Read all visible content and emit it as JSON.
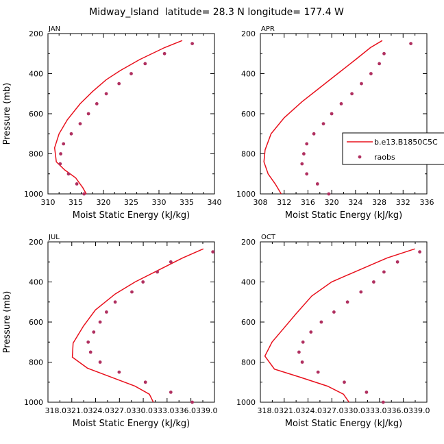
{
  "figure": {
    "title": "Midway_Island  latitude= 28.3 N longitude= 177.4 W"
  },
  "legend": {
    "model_label": "b.e13.B1850C5C",
    "obs_label": "raobs",
    "model_color": "#e8101c",
    "obs_color": "#b03060"
  },
  "chart_data": [
    {
      "type": "line",
      "panel": "JAN",
      "title": "JAN",
      "xlabel": "Moist Static Energy (kJ/kg)",
      "ylabel": "Pressure (mb)",
      "xlim": [
        310,
        340
      ],
      "ylim": [
        1000,
        200
      ],
      "xticks": [
        310,
        312,
        314,
        316,
        318,
        320,
        322,
        324,
        326,
        328,
        330,
        332,
        334,
        336,
        338,
        340
      ],
      "xtick_labels": [
        "310",
        "315",
        "320",
        "325",
        "330",
        "335",
        "340"
      ],
      "xtick_label_values": [
        310,
        315,
        320,
        325,
        330,
        335,
        340
      ],
      "yticks": [
        200,
        300,
        400,
        500,
        600,
        700,
        800,
        900,
        1000
      ],
      "ytick_labels": [
        "200",
        "400",
        "600",
        "800",
        "1000"
      ],
      "ytick_label_values": [
        200,
        400,
        600,
        800,
        1000
      ],
      "series": [
        {
          "name": "b.e13.B1850C5C",
          "style": "line",
          "points": [
            [
              334.2,
              235
            ],
            [
              331.0,
              270
            ],
            [
              326.5,
              330
            ],
            [
              323.0,
              385
            ],
            [
              320.5,
              430
            ],
            [
              318.0,
              490
            ],
            [
              315.8,
              550
            ],
            [
              313.5,
              630
            ],
            [
              312.0,
              700
            ],
            [
              311.2,
              770
            ],
            [
              311.5,
              840
            ],
            [
              313.0,
              880
            ],
            [
              315.0,
              920
            ],
            [
              316.3,
              970
            ],
            [
              316.9,
              1000
            ]
          ]
        },
        {
          "name": "raobs",
          "style": "markers",
          "points": [
            [
              336.0,
              250
            ],
            [
              331.0,
              300
            ],
            [
              327.5,
              350
            ],
            [
              325.0,
              400
            ],
            [
              322.8,
              450
            ],
            [
              320.5,
              500
            ],
            [
              318.8,
              550
            ],
            [
              317.3,
              600
            ],
            [
              315.8,
              650
            ],
            [
              314.2,
              700
            ],
            [
              312.8,
              750
            ],
            [
              312.3,
              800
            ],
            [
              312.2,
              850
            ],
            [
              313.7,
              900
            ],
            [
              315.2,
              950
            ],
            [
              316.5,
              1000
            ]
          ]
        }
      ]
    },
    {
      "type": "line",
      "panel": "APR",
      "title": "APR",
      "xlabel": "Moist Static Energy (kJ/kg)",
      "ylabel": "",
      "xlim": [
        308,
        336
      ],
      "ylim": [
        1000,
        200
      ],
      "xticks": [
        308,
        310,
        312,
        314,
        316,
        318,
        320,
        322,
        324,
        326,
        328,
        330,
        332,
        334,
        336
      ],
      "xtick_labels": [
        "308",
        "312",
        "316",
        "320",
        "324",
        "328",
        "332",
        "336"
      ],
      "xtick_label_values": [
        308,
        312,
        316,
        320,
        324,
        328,
        332,
        336
      ],
      "yticks": [
        200,
        300,
        400,
        500,
        600,
        700,
        800,
        900,
        1000
      ],
      "ytick_labels": [
        "200",
        "400",
        "600",
        "800",
        "1000"
      ],
      "ytick_label_values": [
        200,
        400,
        600,
        800,
        1000
      ],
      "series": [
        {
          "name": "b.e13.B1850C5C",
          "style": "line",
          "points": [
            [
              328.5,
              235
            ],
            [
              326.5,
              270
            ],
            [
              324.0,
              330
            ],
            [
              321.0,
              400
            ],
            [
              318.0,
              470
            ],
            [
              315.0,
              540
            ],
            [
              312.0,
              620
            ],
            [
              309.8,
              700
            ],
            [
              308.8,
              780
            ],
            [
              308.6,
              840
            ],
            [
              309.3,
              900
            ],
            [
              310.5,
              950
            ],
            [
              311.5,
              1000
            ]
          ]
        },
        {
          "name": "raobs",
          "style": "markers",
          "points": [
            [
              333.3,
              250
            ],
            [
              328.8,
              300
            ],
            [
              328.0,
              350
            ],
            [
              326.6,
              400
            ],
            [
              325.0,
              450
            ],
            [
              323.4,
              500
            ],
            [
              321.6,
              550
            ],
            [
              320.0,
              600
            ],
            [
              318.6,
              650
            ],
            [
              317.0,
              700
            ],
            [
              315.8,
              750
            ],
            [
              315.3,
              800
            ],
            [
              315.0,
              850
            ],
            [
              315.8,
              900
            ],
            [
              317.6,
              950
            ],
            [
              319.5,
              1000
            ]
          ]
        }
      ]
    },
    {
      "type": "line",
      "panel": "JUL",
      "title": "JUL",
      "xlabel": "Moist Static Energy (kJ/kg)",
      "ylabel": "Pressure (mb)",
      "xlim": [
        318.0321,
        339.0
      ],
      "ylim": [
        1000,
        200
      ],
      "xticks": [
        318.0321,
        319.5321,
        321.0321,
        322.5321,
        324.0321,
        325.5321,
        327.0321,
        328.5321,
        330.0321,
        331.5321,
        333.0321,
        334.5321,
        336.0321,
        337.5321,
        339.0
      ],
      "xtick_labels": [
        "318.0321.0324.0327.0330.0333.0336.0339.0"
      ],
      "xtick_label_values": [
        328.5
      ],
      "yticks": [
        200,
        300,
        400,
        500,
        600,
        700,
        800,
        900,
        1000
      ],
      "ytick_labels": [
        "200",
        "400",
        "600",
        "800",
        "1000"
      ],
      "ytick_label_values": [
        200,
        400,
        600,
        800,
        1000
      ],
      "series": [
        {
          "name": "b.e13.B1850C5C",
          "style": "line",
          "points": [
            [
              337.6,
              235
            ],
            [
              335.0,
              280
            ],
            [
              332.0,
              340
            ],
            [
              329.0,
              400
            ],
            [
              326.5,
              460
            ],
            [
              324.0,
              540
            ],
            [
              322.5,
              620
            ],
            [
              321.2,
              705
            ],
            [
              321.1,
              775
            ],
            [
              323.0,
              830
            ],
            [
              326.0,
              875
            ],
            [
              329.0,
              920
            ],
            [
              330.8,
              960
            ],
            [
              331.3,
              1000
            ]
          ]
        },
        {
          "name": "raobs",
          "style": "markers",
          "points": [
            [
              338.8,
              250
            ],
            [
              333.5,
              300
            ],
            [
              331.8,
              350
            ],
            [
              330.0,
              400
            ],
            [
              328.6,
              450
            ],
            [
              326.5,
              500
            ],
            [
              325.4,
              550
            ],
            [
              324.6,
              600
            ],
            [
              323.8,
              650
            ],
            [
              323.1,
              700
            ],
            [
              323.4,
              750
            ],
            [
              324.6,
              800
            ],
            [
              327.0,
              850
            ],
            [
              330.3,
              900
            ],
            [
              333.5,
              950
            ],
            [
              336.2,
              1000
            ]
          ]
        }
      ]
    },
    {
      "type": "line",
      "panel": "OCT",
      "title": "OCT",
      "xlabel": "Moist Static Energy (kJ/kg)",
      "ylabel": "",
      "xlim": [
        318.0321,
        339.0
      ],
      "ylim": [
        1000,
        200
      ],
      "xticks": [
        318.0321,
        319.5321,
        321.0321,
        322.5321,
        324.0321,
        325.5321,
        327.0321,
        328.5321,
        330.0321,
        331.5321,
        333.0321,
        334.5321,
        336.0321,
        337.5321,
        339.0
      ],
      "xtick_labels": [
        "318.0321.0324.0327.0330.0333.0336.0339.0"
      ],
      "xtick_label_values": [
        328.5
      ],
      "yticks": [
        200,
        300,
        400,
        500,
        600,
        700,
        800,
        900,
        1000
      ],
      "ytick_labels": [
        "200",
        "400",
        "600",
        "800",
        "1000"
      ],
      "ytick_label_values": [
        200,
        400,
        600,
        800,
        1000
      ],
      "series": [
        {
          "name": "b.e13.B1850C5C",
          "style": "line",
          "points": [
            [
              337.5,
              235
            ],
            [
              334.0,
              280
            ],
            [
              330.5,
              340
            ],
            [
              327.0,
              400
            ],
            [
              324.5,
              470
            ],
            [
              322.5,
              560
            ],
            [
              321.0,
              630
            ],
            [
              319.5,
              700
            ],
            [
              318.6,
              770
            ],
            [
              319.8,
              835
            ],
            [
              323.0,
              875
            ],
            [
              326.5,
              920
            ],
            [
              328.5,
              960
            ],
            [
              329.2,
              1000
            ]
          ]
        },
        {
          "name": "raobs",
          "style": "markers",
          "points": [
            [
              338.1,
              250
            ],
            [
              335.3,
              300
            ],
            [
              333.6,
              350
            ],
            [
              332.3,
              400
            ],
            [
              330.7,
              450
            ],
            [
              329.0,
              500
            ],
            [
              327.3,
              550
            ],
            [
              325.7,
              600
            ],
            [
              324.4,
              650
            ],
            [
              323.4,
              700
            ],
            [
              322.9,
              750
            ],
            [
              323.3,
              800
            ],
            [
              325.3,
              850
            ],
            [
              328.6,
              900
            ],
            [
              331.4,
              950
            ],
            [
              333.5,
              1000
            ]
          ]
        }
      ]
    }
  ]
}
